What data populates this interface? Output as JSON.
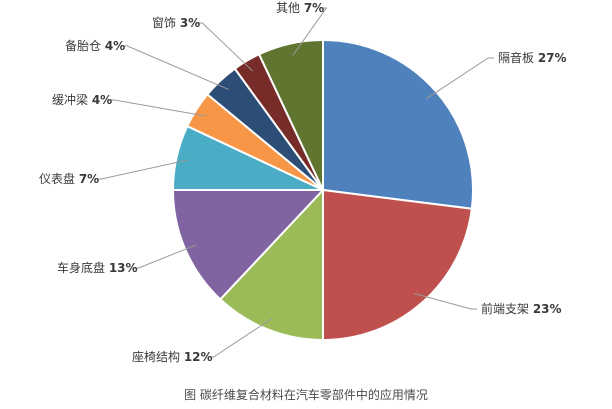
{
  "caption": "图 碳纤维复合材料在汽车零部件中的应用情况",
  "chart_data": {
    "type": "pie",
    "start": "top",
    "direction": "clockwise",
    "slices": [
      {
        "label": "隔音板",
        "value": 27,
        "pct_text": "27%",
        "color": "#4f81bd"
      },
      {
        "label": "前端支架",
        "value": 23,
        "pct_text": "23%",
        "color": "#c0504d"
      },
      {
        "label": "座椅结构",
        "value": 12,
        "pct_text": "12%",
        "color": "#9bbb59"
      },
      {
        "label": "车身底盘",
        "value": 13,
        "pct_text": "13%",
        "color": "#8064a2"
      },
      {
        "label": "仪表盘",
        "value": 7,
        "pct_text": "7%",
        "color": "#4bacc6"
      },
      {
        "label": "缓冲梁",
        "value": 4,
        "pct_text": "4%",
        "color": "#f79646"
      },
      {
        "label": "备胎仓",
        "value": 4,
        "pct_text": "4%",
        "color": "#2c4d75"
      },
      {
        "label": "窗饰",
        "value": 3,
        "pct_text": "3%",
        "color": "#772c2a"
      },
      {
        "label": "其他",
        "value": 7,
        "pct_text": "7%",
        "color": "#5f7530"
      }
    ]
  }
}
